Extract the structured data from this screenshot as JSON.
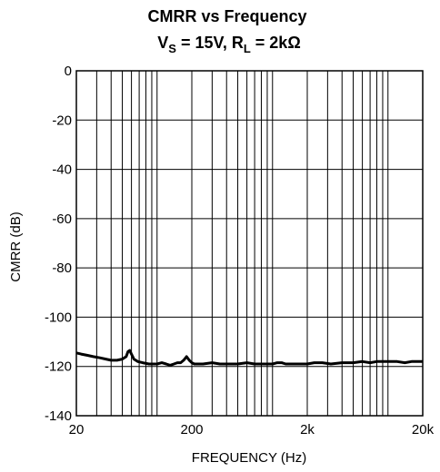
{
  "chart_data": {
    "type": "line",
    "title": "CMRR vs Frequency",
    "subtitle": {
      "parts": [
        {
          "text": "V",
          "sub": false
        },
        {
          "text": "S",
          "sub": true
        },
        {
          "text": " = 15V, R",
          "sub": false
        },
        {
          "text": "L",
          "sub": true
        },
        {
          "text": " = 2kΩ",
          "sub": false
        }
      ]
    },
    "xlabel": "FREQUENCY (Hz)",
    "ylabel": "CMRR (dB)",
    "x_scale": "log",
    "xlim": [
      20,
      20000
    ],
    "ylim": [
      -140,
      0
    ],
    "x_ticks": [
      {
        "value": 20,
        "label": "20"
      },
      {
        "value": 200,
        "label": "200"
      },
      {
        "value": 2000,
        "label": "2k"
      },
      {
        "value": 20000,
        "label": "20k"
      }
    ],
    "y_ticks": [
      {
        "value": 0,
        "label": "0"
      },
      {
        "value": -20,
        "label": "-20"
      },
      {
        "value": -40,
        "label": "-40"
      },
      {
        "value": -60,
        "label": "-60"
      },
      {
        "value": -80,
        "label": "-80"
      },
      {
        "value": -100,
        "label": "-100"
      },
      {
        "value": -120,
        "label": "-120"
      },
      {
        "value": -140,
        "label": "-140"
      }
    ],
    "grid": true,
    "line_color": "#000000",
    "series": [
      {
        "x": [
          20,
          22,
          25,
          28,
          32,
          36,
          40,
          45,
          50,
          54,
          56,
          58,
          60,
          63,
          68,
          75,
          85,
          100,
          110,
          120,
          130,
          140,
          150,
          160,
          170,
          180,
          190,
          200,
          210,
          220,
          250,
          300,
          350,
          400,
          450,
          500,
          600,
          700,
          800,
          900,
          1000,
          1100,
          1200,
          1300,
          1500,
          1700,
          2000,
          2300,
          2700,
          3200,
          4000,
          5000,
          6000,
          7000,
          8000,
          10000,
          12000,
          14000,
          16000,
          18000,
          20000
        ],
        "y": [
          -114.5,
          -115,
          -115.5,
          -116,
          -116.5,
          -117,
          -117.5,
          -117.5,
          -117,
          -116,
          -114,
          -113.5,
          -115,
          -117,
          -118,
          -118.5,
          -119,
          -119,
          -118.5,
          -119,
          -119.5,
          -119,
          -118.5,
          -118.5,
          -117.5,
          -116,
          -117.5,
          -118.5,
          -119,
          -119,
          -119,
          -118.5,
          -119,
          -119,
          -119,
          -119,
          -118.5,
          -119,
          -119,
          -119,
          -119,
          -118.5,
          -118.5,
          -119,
          -119,
          -119,
          -119,
          -118.5,
          -118.5,
          -119,
          -118.5,
          -118.5,
          -118,
          -118.5,
          -118,
          -118,
          -118,
          -118.5,
          -118,
          -118,
          -118
        ]
      }
    ]
  }
}
